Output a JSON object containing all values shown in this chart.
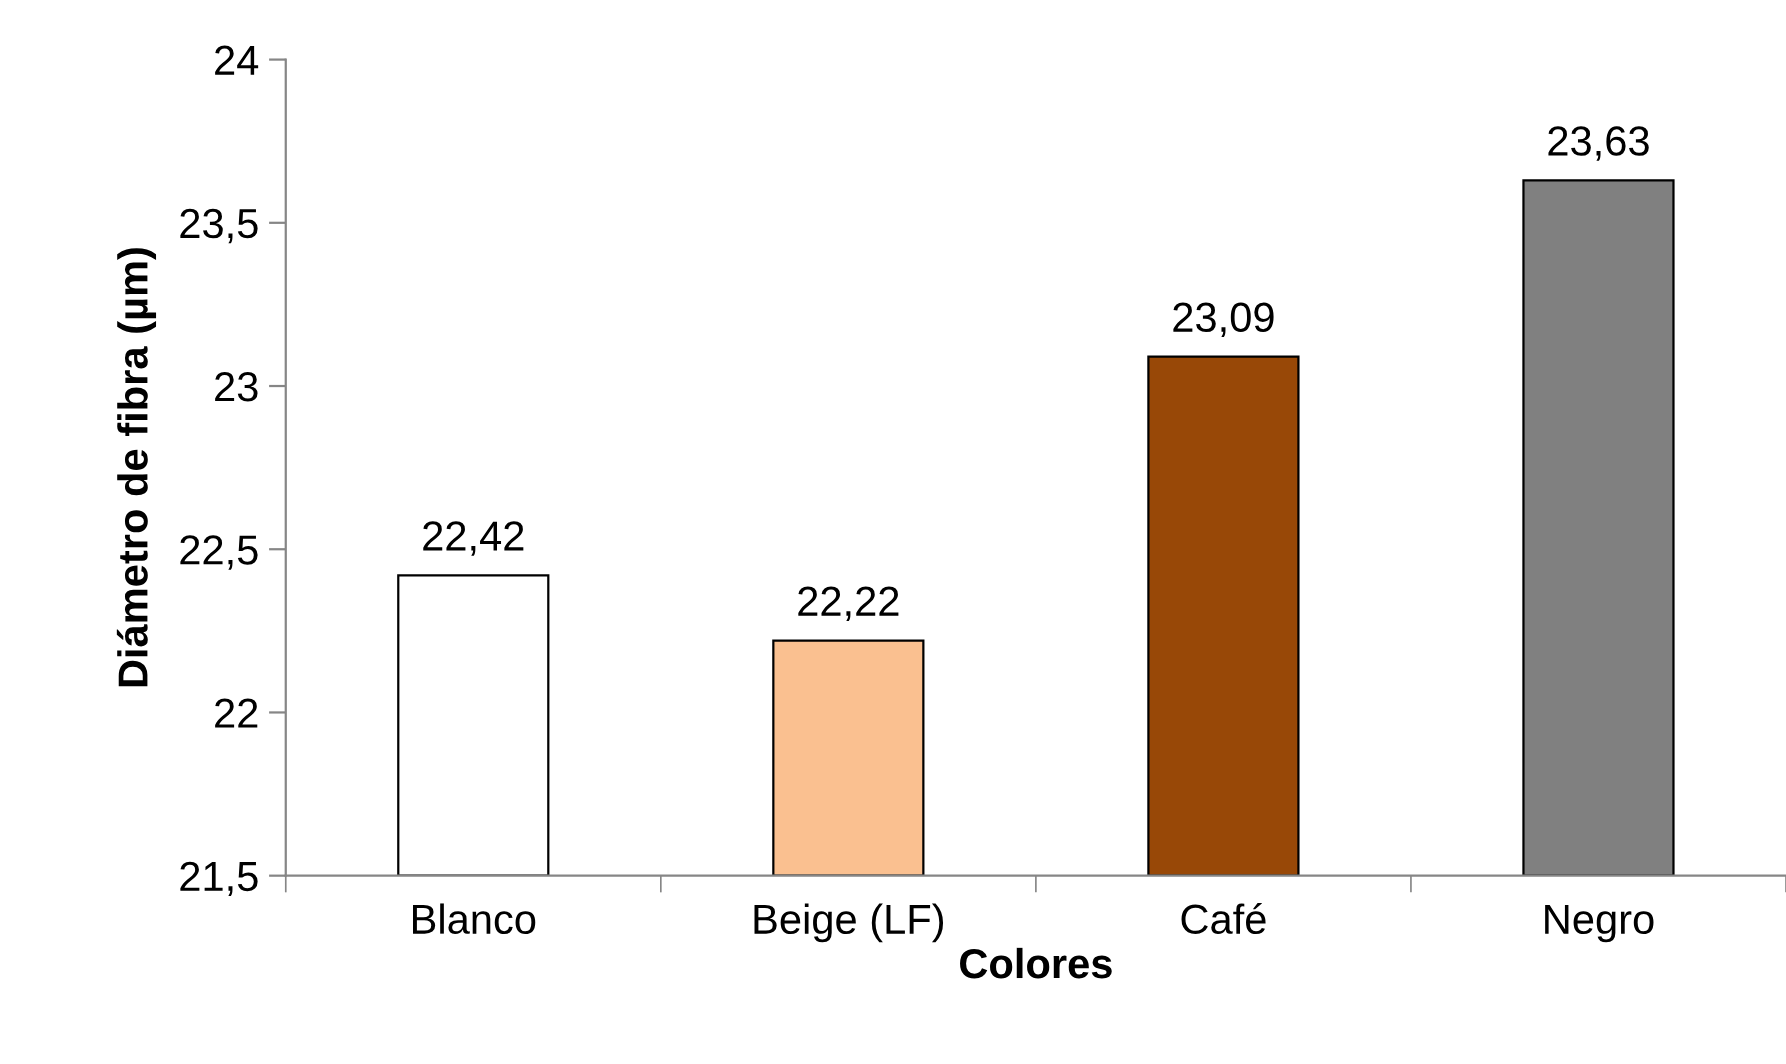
{
  "chart_data": {
    "type": "bar",
    "xlabel": "Colores",
    "ylabel": "Diámetro de fibra (µm)",
    "categories": [
      "Blanco",
      "Beige (LF)",
      "Café",
      "Negro"
    ],
    "values": [
      22.42,
      22.22,
      23.09,
      23.63
    ],
    "colors": [
      "#ffffff",
      "#fac090",
      "#984807",
      "#808080"
    ],
    "value_labels": [
      "22,42",
      "22,22",
      "23,09",
      "23,63"
    ],
    "ylim": [
      21.5,
      24
    ],
    "yticks": [
      {
        "value": 21.5,
        "label": "21,5"
      },
      {
        "value": 22,
        "label": "22"
      },
      {
        "value": 22.5,
        "label": "22,5"
      },
      {
        "value": 23,
        "label": "23"
      },
      {
        "value": 23.5,
        "label": "23,5"
      },
      {
        "value": 24,
        "label": "24"
      }
    ],
    "grid": false,
    "legend": false
  }
}
